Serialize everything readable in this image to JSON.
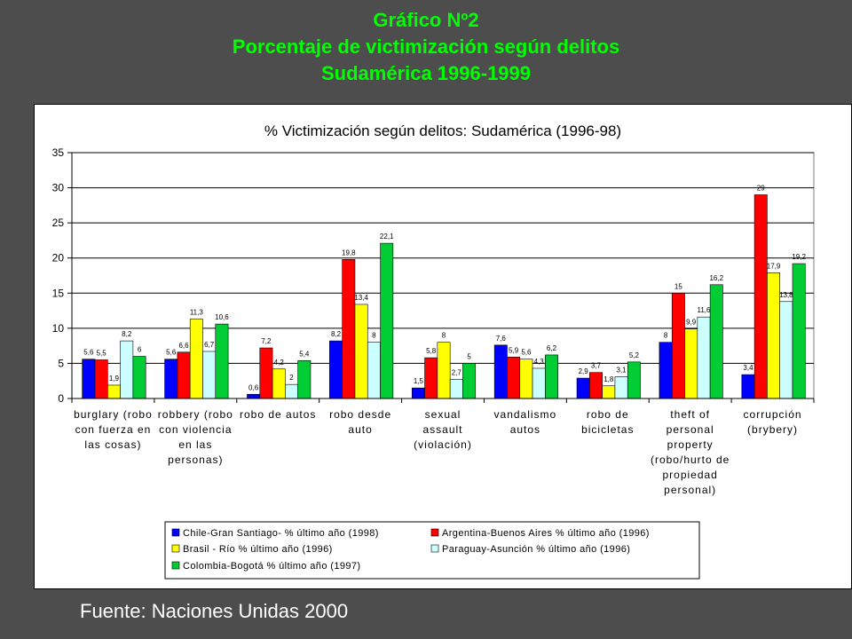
{
  "slide": {
    "title_line1": "Gráfico Nº2",
    "title_line2": "Porcentaje de victimización según delitos",
    "title_line3": "Sudamérica 1996-1999",
    "source": "Fuente: Naciones Unidas 2000"
  },
  "colors": {
    "background": "#4d4d4d",
    "title": "#00ff00"
  },
  "chart_data": {
    "type": "bar",
    "title": "% Victimización según delitos: Sudamérica (1996-98)",
    "ylim": [
      0,
      35
    ],
    "yticks": [
      0,
      5,
      10,
      15,
      20,
      25,
      30,
      35
    ],
    "grid": true,
    "legend_position": "bottom",
    "categories": [
      [
        "burglary (robo",
        "con fuerza en",
        "las cosas)"
      ],
      [
        "robbery (robo",
        "con violencia",
        "en las",
        "personas)"
      ],
      [
        "robo de autos"
      ],
      [
        "robo desde",
        "auto"
      ],
      [
        "sexual",
        "assault",
        "(violación)"
      ],
      [
        "vandalismo",
        "autos"
      ],
      [
        "robo de",
        "bicicletas"
      ],
      [
        "theft of",
        "personal",
        "property",
        "(robo/hurto de",
        "propiedad",
        "personal)"
      ],
      [
        "corrupción",
        "(brybery)"
      ]
    ],
    "series": [
      {
        "name": "Chile-Gran Santiago- % último año (1998)",
        "color": "#0000ff",
        "values": [
          5.6,
          5.6,
          0.6,
          8.2,
          1.5,
          7.6,
          2.9,
          8,
          3.4
        ],
        "labels": [
          "5,6",
          "5,6",
          "0,6",
          "8,2",
          "1,5",
          "7,6",
          "2,9",
          "8",
          "3,4"
        ]
      },
      {
        "name": "Argentina-Buenos Aires % último año (1996)",
        "color": "#ff0000",
        "values": [
          5.5,
          6.6,
          7.2,
          19.8,
          5.8,
          5.9,
          3.7,
          15,
          29
        ],
        "labels": [
          "5,5",
          "6,6",
          "7,2",
          "19,8",
          "5,8",
          "5,9",
          "3,7",
          "15",
          "29"
        ]
      },
      {
        "name": "Brasil - Río % último año (1996)",
        "color": "#ffff00",
        "values": [
          1.9,
          11.3,
          4.2,
          13.4,
          8,
          5.6,
          1.8,
          9.9,
          17.9
        ],
        "labels": [
          "1,9",
          "11,3",
          "4,2",
          "13,4",
          "8",
          "5,6",
          "1,8",
          "9,9",
          "17,9"
        ]
      },
      {
        "name": "Paraguay-Asunción % último año (1996)",
        "color": "#ccffff",
        "values": [
          8.2,
          6.7,
          2,
          8,
          2.7,
          4.3,
          3.1,
          11.6,
          13.8
        ],
        "labels": [
          "8,2",
          "6,7",
          "2",
          "8",
          "2,7",
          "4,3",
          "3,1",
          "11,6",
          "13,8"
        ]
      },
      {
        "name": "Colombia-Bogotá % último año (1997)",
        "color": "#00cc33",
        "values": [
          6,
          10.6,
          5.4,
          22.1,
          5,
          6.2,
          5.2,
          16.2,
          19.2
        ],
        "labels": [
          "6",
          "10,6",
          "5,4",
          "22,1",
          "5",
          "6,2",
          "5,2",
          "16,2",
          "19,2"
        ]
      }
    ]
  }
}
